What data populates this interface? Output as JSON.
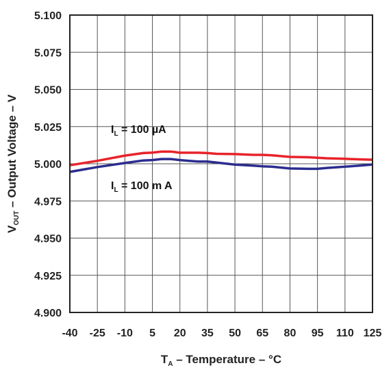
{
  "chart_data": {
    "type": "line",
    "xlabel": {
      "main": "T",
      "sub": "A",
      "rest": " – Temperature – °C"
    },
    "ylabel": {
      "main": "V",
      "sub": "OUT",
      "rest": " – Output Voltage – V"
    },
    "xlim": [
      -40,
      125
    ],
    "ylim": [
      4.9,
      5.1
    ],
    "x_ticks": [
      "-40",
      "-25",
      "-10",
      "5",
      "20",
      "35",
      "50",
      "65",
      "80",
      "95",
      "110",
      "125"
    ],
    "y_ticks": [
      "5.100",
      "5.075",
      "5.050",
      "5.025",
      "5.000",
      "4.975",
      "4.950",
      "4.925",
      "4.900"
    ],
    "grid": true,
    "series": [
      {
        "name": {
          "main": "I",
          "sub": "L",
          "rest": " = 100 µA"
        },
        "color": "#e8232a",
        "x": [
          -40,
          -25,
          -10,
          0,
          5,
          10,
          15,
          20,
          25,
          30,
          35,
          40,
          50,
          60,
          65,
          70,
          80,
          90,
          95,
          100,
          110,
          120,
          125
        ],
        "y": [
          4.999,
          5.002,
          5.0055,
          5.0072,
          5.0075,
          5.0082,
          5.0082,
          5.0074,
          5.0074,
          5.0074,
          5.0072,
          5.0067,
          5.0065,
          5.006,
          5.006,
          5.0057,
          5.0046,
          5.0044,
          5.004,
          5.0037,
          5.0033,
          5.0029,
          5.0027
        ]
      },
      {
        "name": {
          "main": "I",
          "sub": "L",
          "rest": " = 100 m A"
        },
        "color": "#2b2d8e",
        "x": [
          -40,
          -25,
          -10,
          0,
          5,
          10,
          15,
          20,
          25,
          30,
          35,
          40,
          50,
          60,
          65,
          70,
          80,
          90,
          95,
          100,
          110,
          120,
          125
        ],
        "y": [
          4.9945,
          4.9978,
          5.0005,
          5.0022,
          5.0025,
          5.0032,
          5.0032,
          5.0025,
          5.002,
          5.0015,
          5.0015,
          5.0008,
          4.9994,
          4.9987,
          4.9983,
          4.998,
          4.9968,
          4.9966,
          4.9966,
          4.9972,
          4.998,
          4.999,
          4.9995
        ]
      }
    ]
  }
}
